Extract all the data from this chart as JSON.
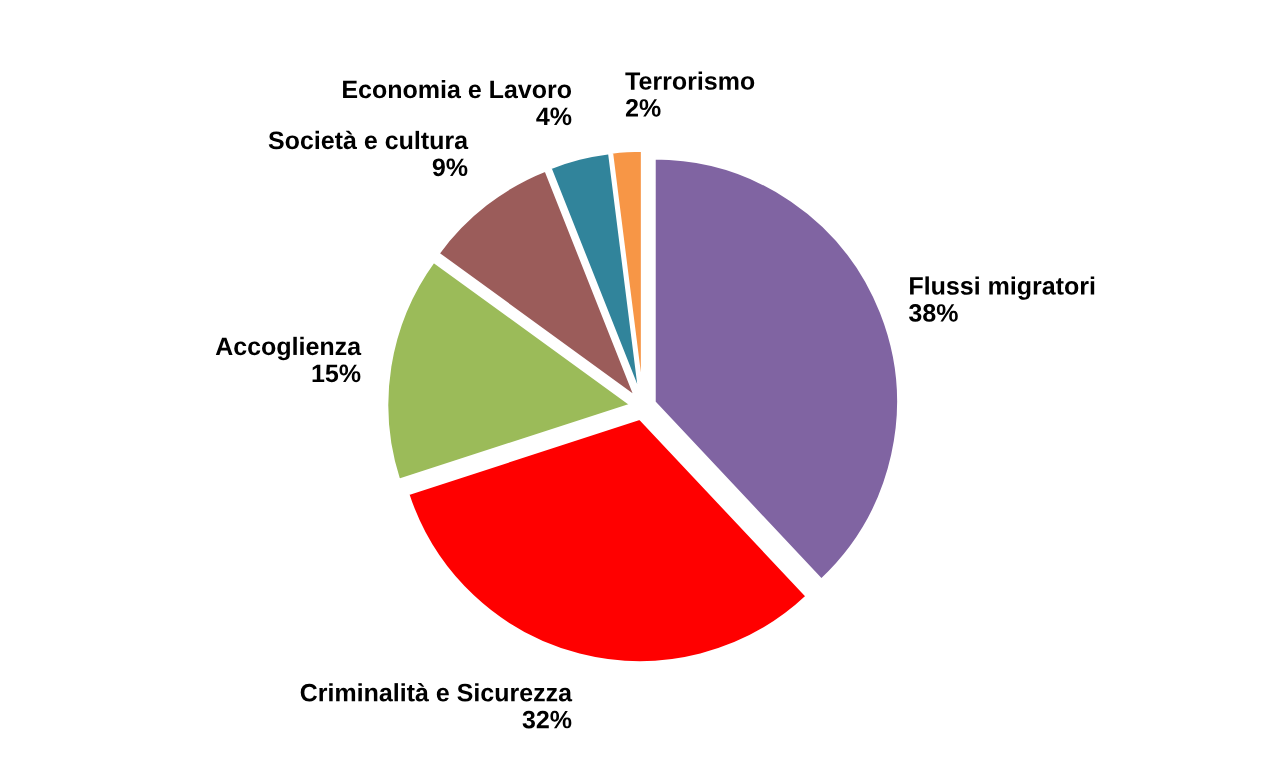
{
  "chart_data": {
    "type": "pie",
    "categories": [
      "Flussi migratori",
      "Criminalità e Sicurezza",
      "Accoglienza",
      "Società e cultura",
      "Economia e Lavoro",
      "Terrorismo"
    ],
    "values": [
      38,
      32,
      15,
      9,
      4,
      2
    ],
    "value_labels": [
      "38%",
      "32%",
      "15%",
      "9%",
      "4%",
      "2%"
    ],
    "colors": [
      "#8064a2",
      "#ff0000",
      "#9bbb59",
      "#9b5c5a",
      "#31849b",
      "#f79646"
    ],
    "legend": false
  }
}
